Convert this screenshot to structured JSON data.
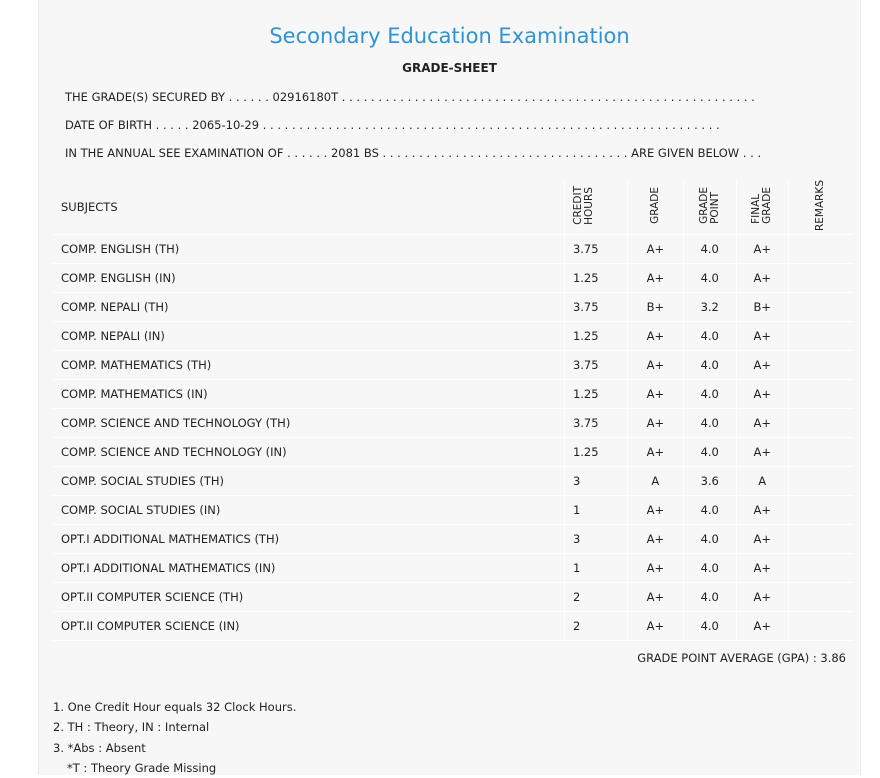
{
  "header": {
    "title": "Secondary Education Examination",
    "subtitle": "GRADE-SHEET"
  },
  "info": {
    "secured_by_label": "THE GRADE(S) SECURED BY . . . . . .",
    "secured_by_value": "02916180T",
    "secured_by_dots": ". . . . . . . . . . . . . . . . . . . . . . . . . . . . . . . . . . . . . . . . . . . . . . . . . . . . . . . . .",
    "dob_label": "DATE OF BIRTH . . . . .",
    "dob_value": "2065-10-29",
    "dob_dots": ". . . . . . . . . . . . . . . . . . . . . . . . . . . . . . . . . . . . . . . . . . . . . . . . . . . . . . . . . . . . . . .",
    "exam_label": "IN THE ANNUAL SEE EXAMINATION OF . . . . . .",
    "exam_value": "2081 BS",
    "exam_dots": ". . . . . . . . . . . . . . . . . . . . . . . . . . . . . . . . . .",
    "exam_suffix": "ARE GIVEN BELOW . . ."
  },
  "table": {
    "headers": {
      "subjects": "SUBJECTS",
      "credit_hours": "CREDIT\nHOURS",
      "grade": "GRADE",
      "grade_point": "GRADE\nPOINT",
      "final_grade": "FINAL\nGRADE",
      "remarks": "REMARKS"
    },
    "rows": [
      {
        "subject": "COMP. ENGLISH (TH)",
        "credit_hours": "3.75",
        "grade": "A+",
        "grade_point": "4.0",
        "final_grade": "A+",
        "remarks": ""
      },
      {
        "subject": "COMP. ENGLISH (IN)",
        "credit_hours": "1.25",
        "grade": "A+",
        "grade_point": "4.0",
        "final_grade": "A+",
        "remarks": ""
      },
      {
        "subject": "COMP. NEPALI (TH)",
        "credit_hours": "3.75",
        "grade": "B+",
        "grade_point": "3.2",
        "final_grade": "B+",
        "remarks": ""
      },
      {
        "subject": "COMP. NEPALI (IN)",
        "credit_hours": "1.25",
        "grade": "A+",
        "grade_point": "4.0",
        "final_grade": "A+",
        "remarks": ""
      },
      {
        "subject": "COMP. MATHEMATICS (TH)",
        "credit_hours": "3.75",
        "grade": "A+",
        "grade_point": "4.0",
        "final_grade": "A+",
        "remarks": ""
      },
      {
        "subject": "COMP. MATHEMATICS (IN)",
        "credit_hours": "1.25",
        "grade": "A+",
        "grade_point": "4.0",
        "final_grade": "A+",
        "remarks": ""
      },
      {
        "subject": "COMP. SCIENCE AND TECHNOLOGY (TH)",
        "credit_hours": "3.75",
        "grade": "A+",
        "grade_point": "4.0",
        "final_grade": "A+",
        "remarks": ""
      },
      {
        "subject": "COMP. SCIENCE AND TECHNOLOGY (IN)",
        "credit_hours": "1.25",
        "grade": "A+",
        "grade_point": "4.0",
        "final_grade": "A+",
        "remarks": ""
      },
      {
        "subject": "COMP. SOCIAL STUDIES (TH)",
        "credit_hours": "3",
        "grade": "A",
        "grade_point": "3.6",
        "final_grade": "A",
        "remarks": ""
      },
      {
        "subject": "COMP. SOCIAL STUDIES (IN)",
        "credit_hours": "1",
        "grade": "A+",
        "grade_point": "4.0",
        "final_grade": "A+",
        "remarks": ""
      },
      {
        "subject": "OPT.I ADDITIONAL MATHEMATICS (TH)",
        "credit_hours": "3",
        "grade": "A+",
        "grade_point": "4.0",
        "final_grade": "A+",
        "remarks": ""
      },
      {
        "subject": "OPT.I ADDITIONAL MATHEMATICS (IN)",
        "credit_hours": "1",
        "grade": "A+",
        "grade_point": "4.0",
        "final_grade": "A+",
        "remarks": ""
      },
      {
        "subject": "OPT.II COMPUTER SCIENCE (TH)",
        "credit_hours": "2",
        "grade": "A+",
        "grade_point": "4.0",
        "final_grade": "A+",
        "remarks": ""
      },
      {
        "subject": "OPT.II COMPUTER SCIENCE (IN)",
        "credit_hours": "2",
        "grade": "A+",
        "grade_point": "4.0",
        "final_grade": "A+",
        "remarks": ""
      }
    ]
  },
  "gpa": {
    "label": "GRADE POINT AVERAGE (GPA) :",
    "value": "3.86"
  },
  "notes": [
    "1. One Credit Hour equals 32 Clock Hours.",
    "2. TH : Theory, IN : Internal",
    "3. *Abs : Absent",
    "*T : Theory Grade Missing"
  ],
  "colors": {
    "title": "#2e94d4",
    "sheet_background": "#f7f7f7",
    "text": "#222222"
  }
}
